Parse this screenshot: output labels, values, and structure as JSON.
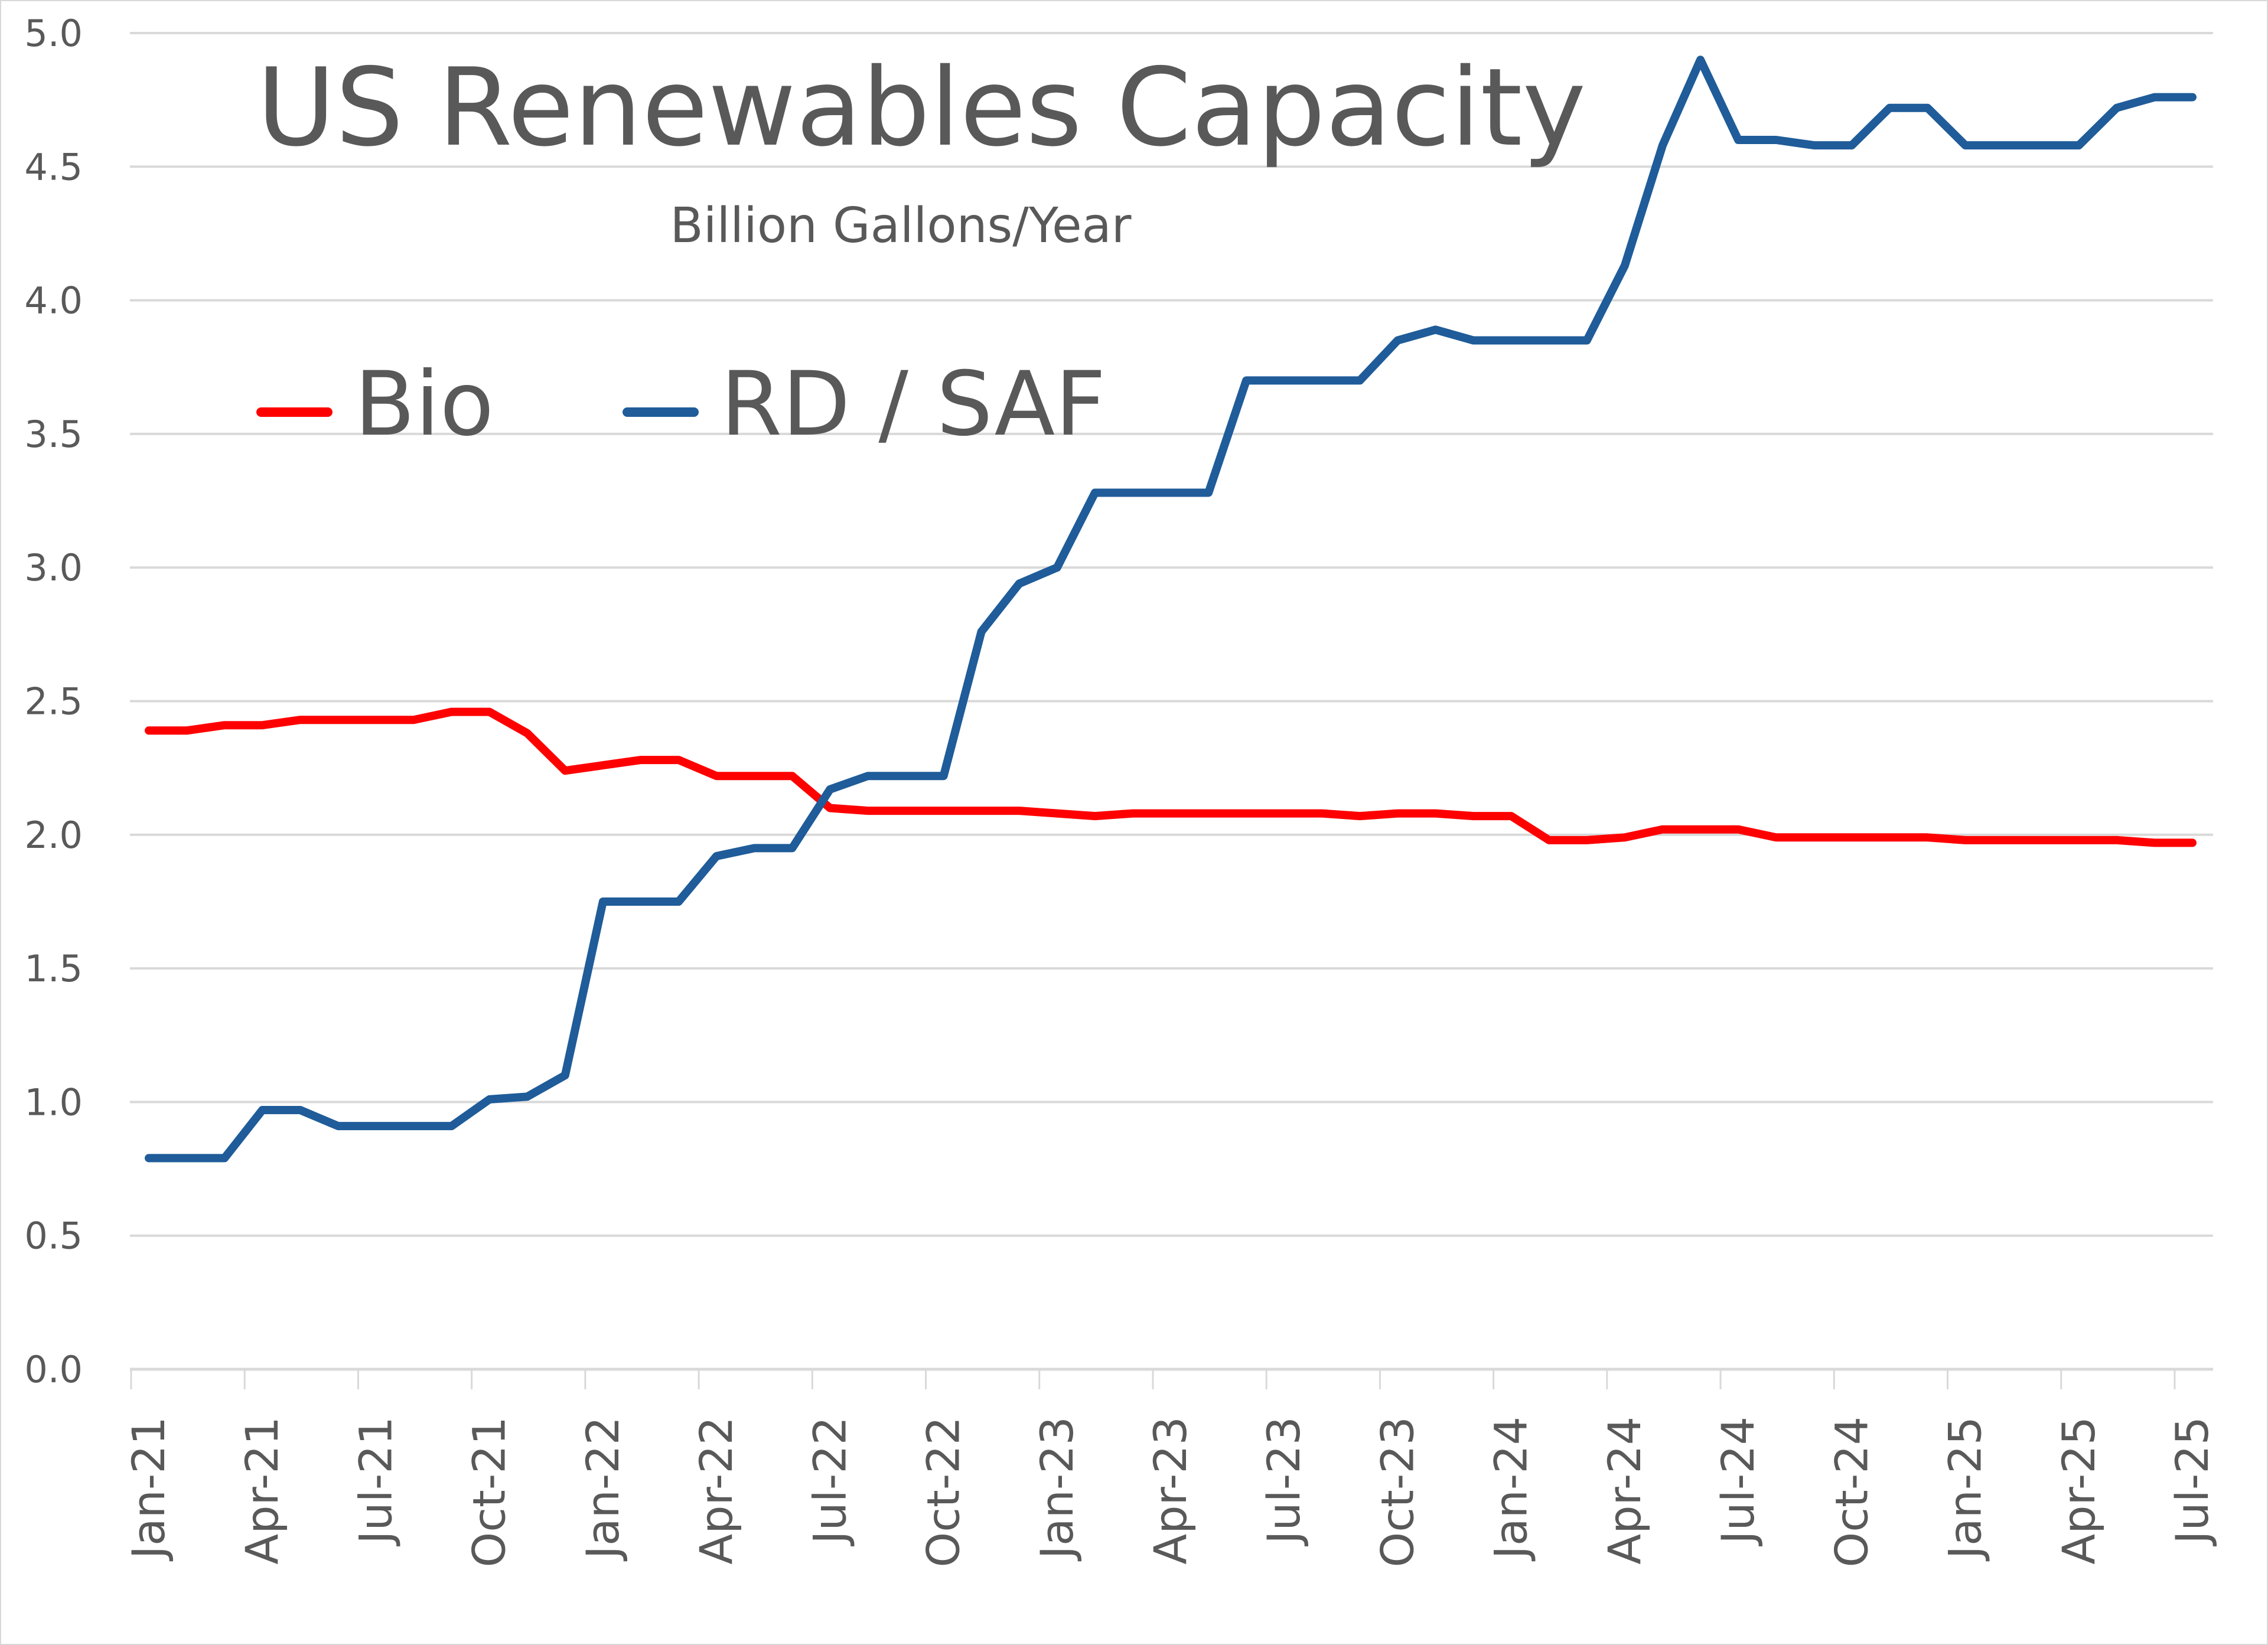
{
  "chart_data": {
    "type": "line",
    "title": "US Renewables Capacity",
    "subtitle": "Billion Gallons/Year",
    "xlabel": "",
    "ylabel": "",
    "ylim": [
      0,
      5
    ],
    "yticks": [
      "0.0",
      "0.5",
      "1.0",
      "1.5",
      "2.0",
      "2.5",
      "3.0",
      "3.5",
      "4.0",
      "4.5",
      "5.0"
    ],
    "ytick_values": [
      0,
      0.5,
      1,
      1.5,
      2,
      2.5,
      3,
      3.5,
      4,
      4.5,
      5
    ],
    "grid": true,
    "legend_position": "top-left",
    "x": [
      "Jan-21",
      "Feb-21",
      "Mar-21",
      "Apr-21",
      "May-21",
      "Jun-21",
      "Jul-21",
      "Aug-21",
      "Sep-21",
      "Oct-21",
      "Nov-21",
      "Dec-21",
      "Jan-22",
      "Feb-22",
      "Mar-22",
      "Apr-22",
      "May-22",
      "Jun-22",
      "Jul-22",
      "Aug-22",
      "Sep-22",
      "Oct-22",
      "Nov-22",
      "Dec-22",
      "Jan-23",
      "Feb-23",
      "Mar-23",
      "Apr-23",
      "May-23",
      "Jun-23",
      "Jul-23",
      "Aug-23",
      "Sep-23",
      "Oct-23",
      "Nov-23",
      "Dec-23",
      "Jan-24",
      "Feb-24",
      "Mar-24",
      "Apr-24",
      "May-24",
      "Jun-24",
      "Jul-24",
      "Aug-24",
      "Sep-24",
      "Oct-24",
      "Nov-24",
      "Dec-24",
      "Jan-25",
      "Feb-25",
      "Mar-25",
      "Apr-25",
      "May-25",
      "Jun-25",
      "Jul-25"
    ],
    "xtick_labels": [
      "Jan-21",
      "Apr-21",
      "Jul-21",
      "Oct-21",
      "Jan-22",
      "Apr-22",
      "Jul-22",
      "Oct-22",
      "Jan-23",
      "Apr-23",
      "Jul-23",
      "Oct-23",
      "Jan-24",
      "Apr-24",
      "Jul-24",
      "Oct-24",
      "Jan-25",
      "Apr-25",
      "Jul-25"
    ],
    "series": [
      {
        "name": "Bio",
        "color": "#ff0000",
        "values": [
          2.39,
          2.39,
          2.41,
          2.41,
          2.43,
          2.43,
          2.43,
          2.43,
          2.46,
          2.46,
          2.38,
          2.24,
          2.26,
          2.28,
          2.28,
          2.22,
          2.22,
          2.22,
          2.1,
          2.09,
          2.09,
          2.09,
          2.09,
          2.09,
          2.08,
          2.07,
          2.08,
          2.08,
          2.08,
          2.08,
          2.08,
          2.08,
          2.07,
          2.08,
          2.08,
          2.07,
          2.07,
          1.98,
          1.98,
          1.99,
          2.02,
          2.02,
          2.02,
          1.99,
          1.99,
          1.99,
          1.99,
          1.99,
          1.98,
          1.98,
          1.98,
          1.98,
          1.98,
          1.97,
          1.97
        ]
      },
      {
        "name": "RD / SAF",
        "color": "#1f5c99",
        "values": [
          0.79,
          0.79,
          0.79,
          0.97,
          0.97,
          0.91,
          0.91,
          0.91,
          0.91,
          1.01,
          1.02,
          1.1,
          1.75,
          1.75,
          1.75,
          1.92,
          1.95,
          1.95,
          2.17,
          2.22,
          2.22,
          2.22,
          2.76,
          2.94,
          3.0,
          3.28,
          3.28,
          3.28,
          3.28,
          3.7,
          3.7,
          3.7,
          3.7,
          3.85,
          3.89,
          3.85,
          3.85,
          3.85,
          3.85,
          4.13,
          4.58,
          4.9,
          4.6,
          4.6,
          4.58,
          4.58,
          4.72,
          4.72,
          4.58,
          4.58,
          4.58,
          4.58,
          4.72,
          4.76,
          4.76
        ]
      }
    ]
  }
}
